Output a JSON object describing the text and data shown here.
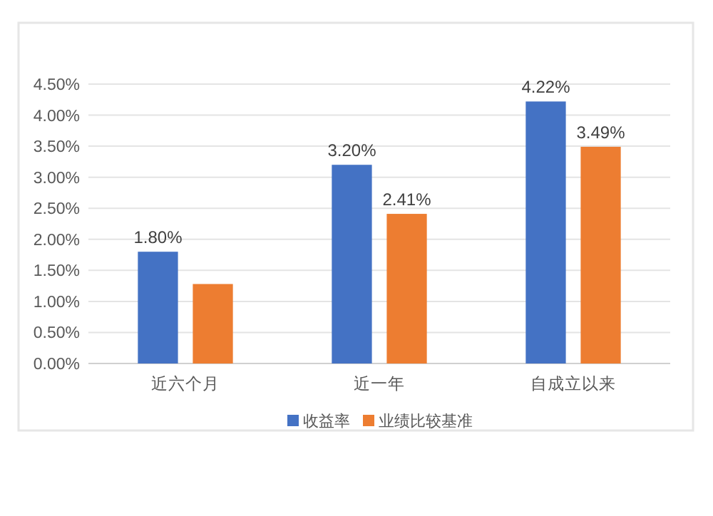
{
  "chart_data": {
    "type": "bar",
    "categories": [
      "近六个月",
      "近一年",
      "自成立以来"
    ],
    "series": [
      {
        "name": "收益率",
        "color": "#4472c4",
        "values": [
          1.8,
          3.2,
          4.22
        ],
        "value_labels": [
          "1.80%",
          "3.20%",
          "4.22%"
        ]
      },
      {
        "name": "业绩比较基准",
        "color": "#ed7d31",
        "values": [
          1.28,
          2.41,
          3.49
        ],
        "value_labels": [
          null,
          "2.41%",
          "3.49%"
        ]
      }
    ],
    "ylim": [
      0,
      4.5
    ],
    "yticks": [
      {
        "value": 0,
        "label": "0.00%"
      },
      {
        "value": 0.5,
        "label": "0.50%"
      },
      {
        "value": 1,
        "label": "1.00%"
      },
      {
        "value": 1.5,
        "label": "1.50%"
      },
      {
        "value": 2,
        "label": "2.00%"
      },
      {
        "value": 2.5,
        "label": "2.50%"
      },
      {
        "value": 3,
        "label": "3.00%"
      },
      {
        "value": 3.5,
        "label": "3.50%"
      },
      {
        "value": 4,
        "label": "4.00%"
      },
      {
        "value": 4.5,
        "label": "4.50%"
      }
    ],
    "grid": "y",
    "legend": "bottom"
  }
}
